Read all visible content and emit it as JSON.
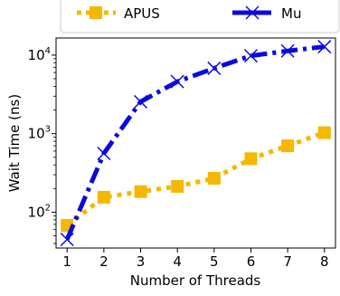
{
  "chart_data": {
    "type": "line",
    "title": "",
    "xlabel": "Number of Threads",
    "ylabel": "Wait Time (ns)",
    "y_scale": "log",
    "xlim": [
      0.7,
      8.3
    ],
    "ylim": [
      35,
      16500
    ],
    "x": [
      1,
      2,
      3,
      4,
      5,
      6,
      7,
      8
    ],
    "x_ticks": [
      "1",
      "2",
      "3",
      "4",
      "5",
      "6",
      "7",
      "8"
    ],
    "y_ticks": [
      {
        "value": 100,
        "base": "10",
        "exp": "2"
      },
      {
        "value": 1000,
        "base": "10",
        "exp": "3"
      },
      {
        "value": 10000,
        "base": "10",
        "exp": "4"
      }
    ],
    "grid": false,
    "legend_position": "top, above plot",
    "series": [
      {
        "name": "APUS",
        "color": "#f5b800",
        "line_style": "dotted",
        "marker": "square",
        "values": [
          68,
          155,
          183,
          213,
          270,
          480,
          700,
          1030
        ]
      },
      {
        "name": "Mu",
        "color": "#0a0adf",
        "line_style": "dash-dot",
        "marker": "x",
        "values": [
          45,
          560,
          2550,
          4600,
          6800,
          9800,
          11300,
          12800
        ]
      }
    ]
  }
}
